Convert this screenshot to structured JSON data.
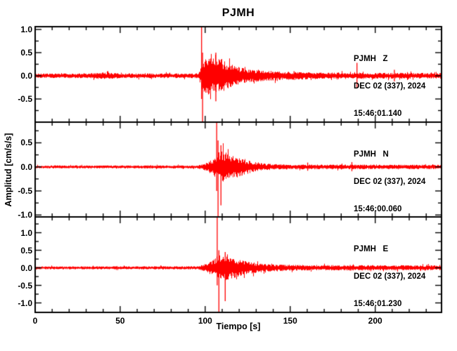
{
  "chart_data": {
    "type": "line",
    "subtype": "seismogram-three-component",
    "title": "PJMH",
    "xlabel": "Tiempo [s]",
    "ylabel": "Amplitud [cm/s/s]",
    "xlim": [
      0,
      239
    ],
    "xticks_major": [
      0,
      50,
      100,
      150,
      200
    ],
    "xtick_minor_step": 10,
    "ytick_major_step": 0.5,
    "ytick_minor_step": 0.25,
    "grid": false,
    "legend": "none",
    "colors": {
      "trace": "#ff0000",
      "axis": "#000000",
      "background": "#ffffff"
    },
    "panels": [
      {
        "station": "PJMH",
        "channel": "Z",
        "station_channel_label": "PJMH   Z",
        "date_label": "DEC 02 (337), 2024",
        "time_label": "15:46:01.140",
        "ylim": [
          -1.0,
          1.06
        ],
        "ytick_labels": [
          1.0,
          0.5,
          0.0,
          -0.5
        ],
        "noise_amplitude": 0.05,
        "event_p_arrival_s": 98,
        "envelope": [
          [
            0,
            0.05
          ],
          [
            30,
            0.05
          ],
          [
            40,
            0.075
          ],
          [
            50,
            0.052
          ],
          [
            90,
            0.05
          ],
          [
            96,
            0.055
          ],
          [
            98,
            0.3
          ],
          [
            100,
            0.42
          ],
          [
            104,
            0.38
          ],
          [
            108,
            0.42
          ],
          [
            112,
            0.3
          ],
          [
            118,
            0.2
          ],
          [
            126,
            0.14
          ],
          [
            136,
            0.11
          ],
          [
            150,
            0.085
          ],
          [
            170,
            0.07
          ],
          [
            239,
            0.06
          ]
        ],
        "spikes": [
          [
            97.6,
            1.06,
            0.5
          ],
          [
            98.2,
            0.5,
            1.0
          ],
          [
            106,
            0.5,
            0.55
          ],
          [
            152,
            0.1,
            0.09
          ],
          [
            189,
            0.28,
            0.26
          ],
          [
            211,
            0.13,
            0.12
          ]
        ]
      },
      {
        "station": "PJMH",
        "channel": "N",
        "station_channel_label": "PJMH   N",
        "date_label": "DEC 02 (337), 2024",
        "time_label": "15:46:00.060",
        "ylim": [
          -1.04,
          0.93
        ],
        "ytick_labels": [
          0.5,
          0.0,
          -0.5,
          -1.0
        ],
        "noise_amplitude": 0.03,
        "event_s_arrival_s": 107,
        "envelope": [
          [
            0,
            0.03
          ],
          [
            95,
            0.032
          ],
          [
            99,
            0.06
          ],
          [
            102,
            0.12
          ],
          [
            105,
            0.18
          ],
          [
            107,
            0.3
          ],
          [
            110,
            0.33
          ],
          [
            114,
            0.28
          ],
          [
            120,
            0.2
          ],
          [
            127,
            0.12
          ],
          [
            135,
            0.07
          ],
          [
            150,
            0.05
          ],
          [
            239,
            0.045
          ]
        ],
        "spikes": [
          [
            106.5,
            0.93,
            0.5
          ],
          [
            107.3,
            0.55,
            1.04
          ],
          [
            109,
            0.45,
            0.8
          ],
          [
            160,
            0.09,
            0.08
          ],
          [
            186,
            0.1,
            0.09
          ]
        ]
      },
      {
        "station": "PJMH",
        "channel": "E",
        "station_channel_label": "PJMH   E",
        "date_label": "DEC 02 (337), 2024",
        "time_label": "15:46:01.230",
        "ylim": [
          -1.27,
          1.45
        ],
        "ytick_labels": [
          1.0,
          0.5,
          0.0,
          -0.5,
          -1.0
        ],
        "noise_amplitude": 0.042,
        "event_s_arrival_s": 107,
        "envelope": [
          [
            0,
            0.042
          ],
          [
            95,
            0.045
          ],
          [
            99,
            0.09
          ],
          [
            102,
            0.16
          ],
          [
            105,
            0.25
          ],
          [
            108,
            0.38
          ],
          [
            112,
            0.36
          ],
          [
            116,
            0.3
          ],
          [
            122,
            0.22
          ],
          [
            130,
            0.14
          ],
          [
            140,
            0.1
          ],
          [
            160,
            0.08
          ],
          [
            239,
            0.07
          ]
        ],
        "spikes": [
          [
            106.8,
            1.45,
            0.5
          ],
          [
            107.8,
            0.5,
            1.27
          ],
          [
            111.5,
            0.45,
            0.95
          ],
          [
            185,
            0.08,
            0.08
          ]
        ]
      }
    ]
  }
}
